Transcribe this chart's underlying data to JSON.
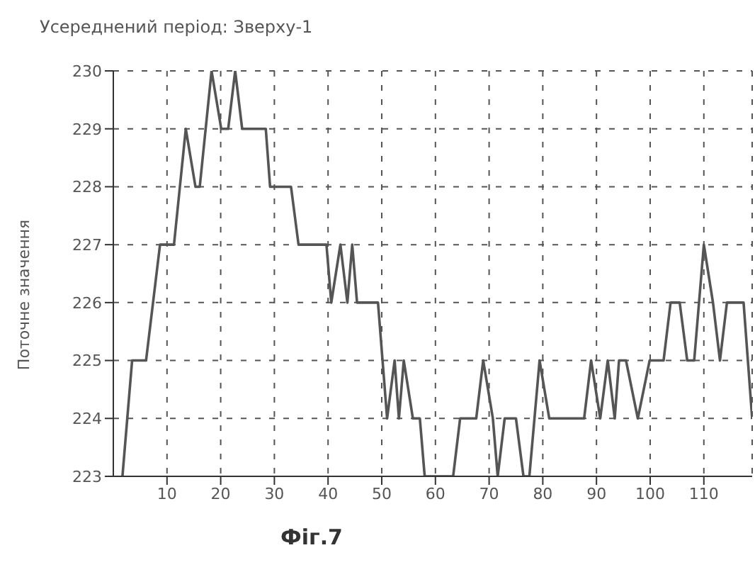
{
  "chart_data": {
    "type": "line",
    "title": "Усереднений період: Зверху-1",
    "ylabel": "Поточне значення",
    "annotations": [
      "Фіг.7"
    ],
    "series": [
      {
        "color": "#555555",
        "x": [
          1.7,
          3.5,
          6.1,
          8.7,
          11.3,
          13.5,
          15.3,
          16.1,
          18.3,
          20.1,
          21.4,
          22.7,
          24,
          28.4,
          29.2,
          33.1,
          34.5,
          39.7,
          40.6,
          42.3,
          43.6,
          44.5,
          45.4,
          49.3,
          51,
          52.4,
          53.2,
          54.1,
          55.8,
          57.1,
          58,
          63.3,
          64.6,
          67.6,
          68.9,
          70.7,
          71.6,
          72.9,
          75,
          76.4,
          77.5,
          79.4,
          81.2,
          87.7,
          89,
          90.7,
          92.1,
          93.4,
          94.2,
          95.5,
          97.7,
          99.9,
          102.5,
          103.8,
          105.5,
          106.9,
          108.2,
          110,
          111.7,
          113,
          114.3,
          117.4,
          119
        ],
        "values": [
          223,
          225,
          225,
          227,
          227,
          229,
          228,
          228,
          230,
          229,
          229,
          230,
          229,
          229,
          228,
          228,
          227,
          227,
          226,
          227,
          226,
          227,
          226,
          226,
          224,
          225,
          224,
          225,
          224,
          224,
          223,
          223,
          224,
          224,
          225,
          224,
          223,
          224,
          224,
          223,
          223,
          225,
          224,
          224,
          225,
          224,
          225,
          224,
          225,
          225,
          224,
          225,
          225,
          226,
          226,
          225,
          225,
          227,
          226,
          225,
          226,
          226,
          224
        ]
      }
    ],
    "xlim": [
      0,
      119
    ],
    "xticks": [
      10,
      20,
      30,
      40,
      50,
      60,
      70,
      80,
      90,
      100,
      110
    ],
    "ylim": [
      223,
      230
    ],
    "yticks": [
      223,
      224,
      225,
      226,
      227,
      228,
      229,
      230
    ],
    "grid": true,
    "legend": false,
    "marker": "none",
    "line_style": "solid"
  }
}
